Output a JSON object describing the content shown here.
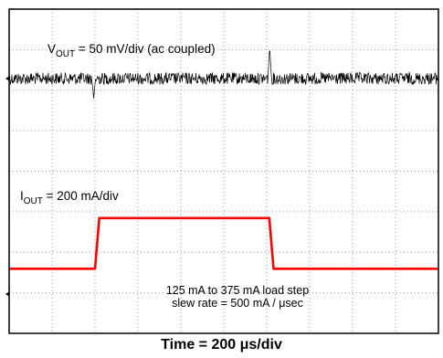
{
  "chart_data": {
    "type": "line",
    "title": "",
    "xlabel": "Time = 200 μs/div",
    "ylabel": "",
    "grid": true,
    "grid_divisions": {
      "x": 10,
      "y": 8
    },
    "annotations": {
      "vout_prefix": "V",
      "vout_sub": "OUT",
      "vout_rest": " = 50 mV/div (ac coupled)",
      "iout_prefix": "I",
      "iout_sub": "OUT",
      "iout_rest": " = 200 mA/div",
      "note_line1": "125 mA to 375 mA load step",
      "note_line2": "slew rate = 500 mA / μsec"
    },
    "series": [
      {
        "name": "VOUT",
        "color": "#000000",
        "unit": "mV",
        "baseline": 0,
        "noise_pp": 15,
        "events": [
          {
            "x": 1.97,
            "dir": -1,
            "amp": 25
          },
          {
            "x": 6.07,
            "dir": 1,
            "amp": 38
          }
        ]
      },
      {
        "name": "IOUT",
        "color": "#ff0000",
        "unit": "mA",
        "x": [
          0,
          2.0,
          2.1,
          6.06,
          6.16,
          10
        ],
        "values": [
          125,
          125,
          375,
          375,
          125,
          125
        ]
      }
    ]
  }
}
